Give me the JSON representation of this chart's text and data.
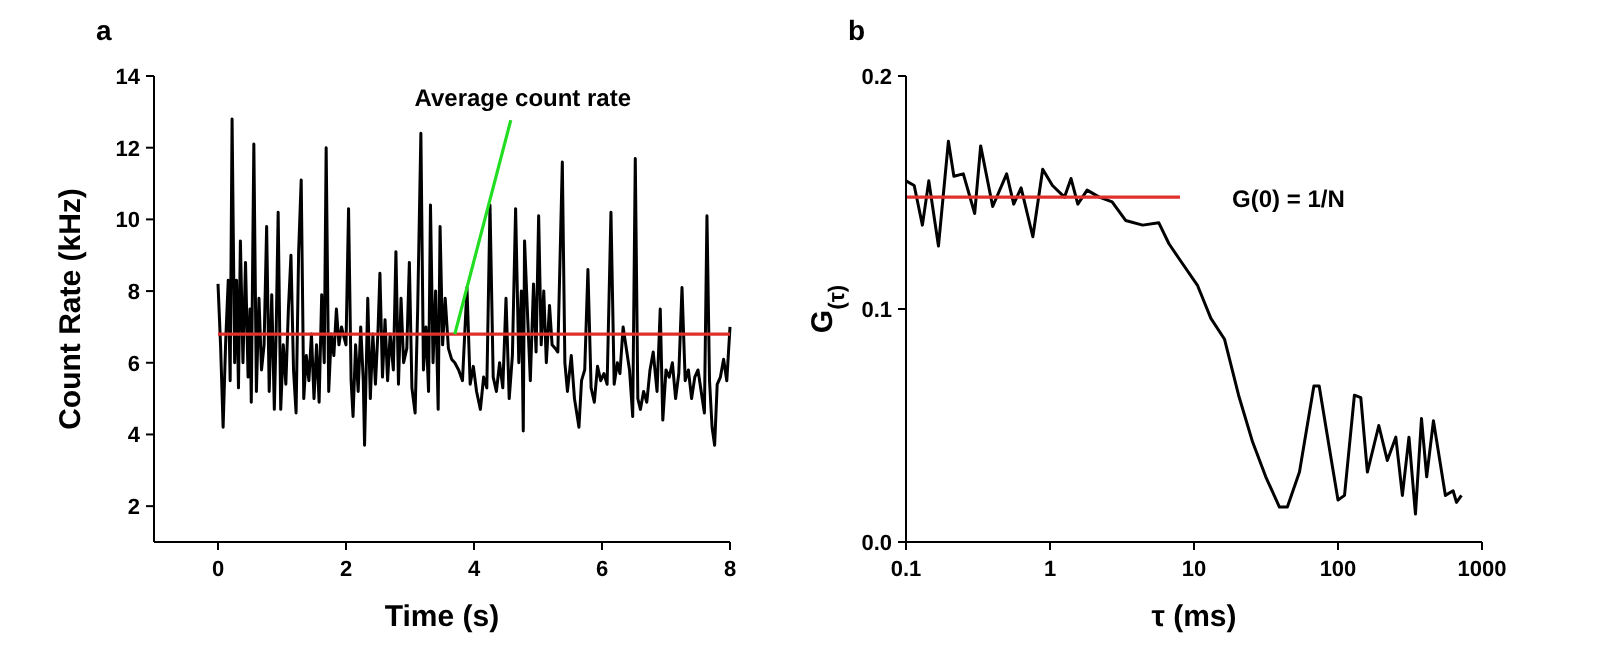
{
  "chart_data": [
    {
      "type": "line",
      "title": "a",
      "xlabel": "Time (s)",
      "ylabel": "Count Rate (kHz)",
      "xlim": [
        -1,
        8
      ],
      "ylim": [
        1,
        14
      ],
      "xticks": [
        0,
        2,
        4,
        6,
        8
      ],
      "yticks": [
        2,
        4,
        6,
        8,
        10,
        12,
        14
      ],
      "annotations": [
        {
          "text": "Average count rate",
          "x": 3.7,
          "y": 6.8
        }
      ],
      "series": [
        {
          "color": "#000000",
          "x": [
            0,
            0.04,
            0.08,
            0.12,
            0.16,
            0.19,
            0.22,
            0.26,
            0.29,
            0.32,
            0.35,
            0.39,
            0.43,
            0.47,
            0.5,
            0.52,
            0.56,
            0.6,
            0.64,
            0.68,
            0.72,
            0.76,
            0.8,
            0.84,
            0.88,
            0.91,
            0.94,
            0.98,
            1.02,
            1.06,
            1.1,
            1.14,
            1.18,
            1.22,
            1.26,
            1.3,
            1.34,
            1.38,
            1.42,
            1.46,
            1.5,
            1.54,
            1.58,
            1.62,
            1.66,
            1.69,
            1.73,
            1.77,
            1.81,
            1.85,
            1.89,
            1.93,
            1.97,
            2,
            2.04,
            2.08,
            2.11,
            2.15,
            2.19,
            2.23,
            2.27,
            2.29,
            2.34,
            2.38,
            2.42,
            2.46,
            2.5,
            2.53,
            2.57,
            2.61,
            2.65,
            2.69,
            2.74,
            2.78,
            2.82,
            2.86,
            2.9,
            2.95,
            2.99,
            3.03,
            3.08,
            3.12,
            3.17,
            3.21,
            3.25,
            3.29,
            3.32,
            3.36,
            3.4,
            3.44,
            3.47,
            3.51,
            3.55,
            3.6,
            3.65,
            3.7,
            3.76,
            3.82,
            3.89,
            3.94,
            3.99,
            4.04,
            4.1,
            4.15,
            4.2,
            4.25,
            4.3,
            4.35,
            4.4,
            4.45,
            4.5,
            4.55,
            4.6,
            4.65,
            4.7,
            4.74,
            4.77,
            4.79,
            4.84,
            4.88,
            4.93,
            4.97,
            5.01,
            5.05,
            5.09,
            5.13,
            5.18,
            5.22,
            5.27,
            5.31,
            5.38,
            5.42,
            5.46,
            5.52,
            5.57,
            5.64,
            5.68,
            5.73,
            5.78,
            5.83,
            5.88,
            5.93,
            5.98,
            6.03,
            6.08,
            6.14,
            6.19,
            6.24,
            6.28,
            6.33,
            6.38,
            6.43,
            6.48,
            6.52,
            6.56,
            6.6,
            6.65,
            6.7,
            6.75,
            6.8,
            6.86,
            6.91,
            6.95,
            7,
            7.05,
            7.1,
            7.15,
            7.2,
            7.25,
            7.3,
            7.35,
            7.4,
            7.45,
            7.5,
            7.55,
            7.6,
            7.64,
            7.68,
            7.72,
            7.76,
            7.8,
            7.85,
            7.9,
            7.95,
            8
          ],
          "values": [
            8.2,
            6.5,
            4.2,
            6.6,
            8.3,
            5.5,
            12.8,
            6,
            8.3,
            5.3,
            9.4,
            6,
            8.8,
            5.6,
            7.5,
            4.9,
            12.1,
            5.2,
            7.8,
            5.8,
            6.5,
            9.8,
            5.2,
            7.9,
            4.7,
            7,
            10.2,
            4.7,
            6.5,
            5.4,
            7.5,
            9,
            5.8,
            4.6,
            9.1,
            11.1,
            5,
            6.2,
            5.5,
            6.8,
            5,
            6.5,
            4.9,
            7.9,
            6,
            12,
            5.2,
            6.8,
            6.2,
            7.5,
            6.5,
            7,
            6.7,
            6.5,
            10.3,
            5.5,
            4.5,
            6.5,
            5.2,
            7,
            5.5,
            3.7,
            7.8,
            5,
            6.8,
            5.4,
            6.9,
            8.5,
            5.6,
            7.2,
            5.5,
            6.8,
            5.8,
            9.1,
            5.4,
            7.8,
            6,
            6.4,
            8.8,
            5.3,
            4.6,
            7.5,
            12.4,
            5.8,
            7,
            5.2,
            10.4,
            6,
            8,
            4.7,
            9.8,
            6.5,
            7.8,
            6.4,
            6.1,
            6,
            5.8,
            5.5,
            8.1,
            5.4,
            5.9,
            5.2,
            4.7,
            5.6,
            5.3,
            10.4,
            5.6,
            5.2,
            6,
            5.3,
            7.8,
            5,
            6.2,
            10.3,
            6,
            8,
            4.1,
            9.4,
            7.2,
            5.5,
            8.2,
            6.3,
            10.1,
            6.5,
            8,
            6,
            7.6,
            6.5,
            6.4,
            6.3,
            11.6,
            6,
            5.2,
            6.2,
            5,
            4.2,
            5.5,
            5.8,
            8.6,
            5.3,
            4.9,
            5.9,
            5.5,
            5.7,
            5.4,
            10.2,
            5.4,
            6,
            5.7,
            7,
            6.4,
            5.8,
            4.5,
            11.7,
            5,
            4.7,
            5.2,
            4.9,
            5.8,
            6.3,
            5.2,
            7.5,
            4.4,
            5.8,
            5.6,
            6,
            5,
            5.7,
            8.1,
            5.5,
            5.8,
            5,
            5.6,
            5.8,
            5.2,
            4.6,
            10.1,
            5.5,
            4.2,
            3.7,
            5.4,
            5.6,
            6.1,
            5.5,
            7
          ]
        },
        {
          "color": "#e0302c",
          "x": [
            0,
            8
          ],
          "values": [
            6.8,
            6.8
          ]
        }
      ]
    },
    {
      "type": "line",
      "title": "b",
      "xlabel": "τ (ms)",
      "ylabel": "G$_{(τ)}$",
      "log": "x",
      "xlim": [
        0.1,
        1000
      ],
      "ylim": [
        0,
        0.2
      ],
      "xticks": [
        0.1,
        1,
        10,
        100,
        1000
      ],
      "yticks": [
        {
          "value": 0,
          "label": "0.0"
        },
        {
          "value": 0.1,
          "label": "0.1"
        },
        {
          "value": 0.2,
          "label": "0.2"
        }
      ],
      "annotations": [
        {
          "text": "G(0) = 1/N",
          "x": 8,
          "y": 0.148
        }
      ],
      "series": [
        {
          "color": "#000000",
          "x": [
            0.1,
            0.114,
            0.13,
            0.144,
            0.168,
            0.197,
            0.215,
            0.25,
            0.3,
            0.33,
            0.4,
            0.5,
            0.56,
            0.63,
            0.76,
            0.89,
            1.04,
            1.26,
            1.4,
            1.56,
            1.81,
            2.2,
            2.7,
            3.35,
            4.4,
            5.7,
            6.7,
            7.8,
            10.6,
            13.1,
            16.3,
            20.4,
            25.5,
            31.5,
            39.2,
            44.5,
            54,
            68,
            74,
            90,
            100,
            111,
            130,
            144,
            160,
            192,
            220,
            252,
            280,
            311,
            345,
            380,
            413,
            460,
            557,
            630,
            665,
            720
          ],
          "values": [
            0.155,
            0.153,
            0.136,
            0.155,
            0.127,
            0.172,
            0.157,
            0.158,
            0.141,
            0.17,
            0.144,
            0.158,
            0.145,
            0.152,
            0.131,
            0.16,
            0.153,
            0.148,
            0.156,
            0.145,
            0.151,
            0.148,
            0.146,
            0.138,
            0.136,
            0.137,
            0.128,
            0.122,
            0.11,
            0.096,
            0.087,
            0.063,
            0.043,
            0.028,
            0.015,
            0.015,
            0.03,
            0.067,
            0.067,
            0.035,
            0.018,
            0.02,
            0.063,
            0.062,
            0.03,
            0.05,
            0.035,
            0.045,
            0.02,
            0.045,
            0.012,
            0.053,
            0.028,
            0.052,
            0.02,
            0.022,
            0.017,
            0.02
          ]
        },
        {
          "color": "#e0302c",
          "x": [
            0.1,
            8
          ],
          "values": [
            0.148,
            0.148
          ]
        }
      ]
    }
  ]
}
